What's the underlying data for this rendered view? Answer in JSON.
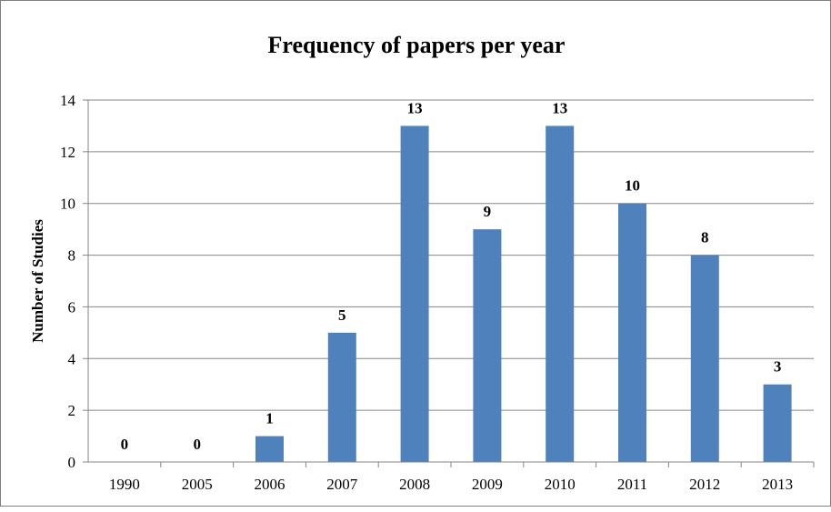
{
  "chart_data": {
    "type": "bar",
    "title": "Frequency of papers per year",
    "xlabel": "",
    "ylabel": "Number of Studies",
    "categories": [
      "1990",
      "2005",
      "2006",
      "2007",
      "2008",
      "2009",
      "2010",
      "2011",
      "2012",
      "2013"
    ],
    "values": [
      0,
      0,
      1,
      5,
      13,
      9,
      13,
      10,
      8,
      3
    ],
    "data_labels": [
      "0",
      "0",
      "1",
      "5",
      "13",
      "9",
      "13",
      "10",
      "8",
      "3"
    ],
    "ylim": [
      0,
      14
    ],
    "yticks": [
      "0",
      "2",
      "4",
      "6",
      "8",
      "10",
      "12",
      "14"
    ],
    "grid": true,
    "legend": "none",
    "colors": {
      "bar": "#4f81bd",
      "grid": "#868686",
      "axis": "#868686",
      "border": "#808080"
    }
  }
}
